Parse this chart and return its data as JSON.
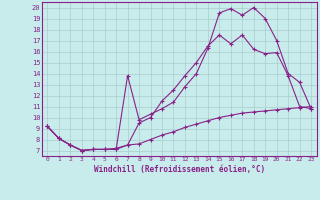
{
  "xlabel": "Windchill (Refroidissement éolien,°C)",
  "bg_color": "#c8ecec",
  "line_color": "#882288",
  "grid_color": "#aacccc",
  "xlim": [
    -0.5,
    23.5
  ],
  "ylim": [
    6.5,
    20.5
  ],
  "yticks": [
    7,
    8,
    9,
    10,
    11,
    12,
    13,
    14,
    15,
    16,
    17,
    18,
    19,
    20
  ],
  "xticks": [
    0,
    1,
    2,
    3,
    4,
    5,
    6,
    7,
    8,
    9,
    10,
    11,
    12,
    13,
    14,
    15,
    16,
    17,
    18,
    19,
    20,
    21,
    22,
    23
  ],
  "line1_x": [
    0,
    1,
    2,
    3,
    4,
    5,
    6,
    7,
    8,
    9,
    10,
    11,
    12,
    13,
    14,
    15,
    16,
    17,
    18,
    19,
    20,
    21,
    22,
    23
  ],
  "line1_y": [
    9.2,
    8.1,
    7.5,
    7.0,
    7.1,
    7.1,
    7.1,
    13.8,
    9.8,
    10.3,
    10.8,
    11.4,
    12.8,
    14.0,
    16.3,
    19.5,
    19.9,
    19.3,
    20.0,
    19.0,
    17.0,
    14.0,
    13.2,
    10.8
  ],
  "line2_x": [
    0,
    1,
    2,
    3,
    4,
    5,
    6,
    7,
    8,
    9,
    10,
    11,
    12,
    13,
    14,
    15,
    16,
    17,
    18,
    19,
    20,
    21,
    22,
    23
  ],
  "line2_y": [
    9.2,
    8.1,
    7.5,
    7.0,
    7.1,
    7.1,
    7.1,
    7.5,
    9.5,
    10.0,
    11.5,
    12.5,
    13.8,
    15.0,
    16.5,
    17.5,
    16.7,
    17.5,
    16.2,
    15.8,
    15.9,
    13.8,
    11.0,
    10.8
  ],
  "line3_x": [
    0,
    1,
    2,
    3,
    4,
    5,
    6,
    7,
    8,
    9,
    10,
    11,
    12,
    13,
    14,
    15,
    16,
    17,
    18,
    19,
    20,
    21,
    22,
    23
  ],
  "line3_y": [
    9.2,
    8.1,
    7.5,
    7.0,
    7.1,
    7.1,
    7.2,
    7.5,
    7.6,
    8.0,
    8.4,
    8.7,
    9.1,
    9.4,
    9.7,
    10.0,
    10.2,
    10.4,
    10.5,
    10.6,
    10.7,
    10.8,
    10.9,
    11.0
  ]
}
